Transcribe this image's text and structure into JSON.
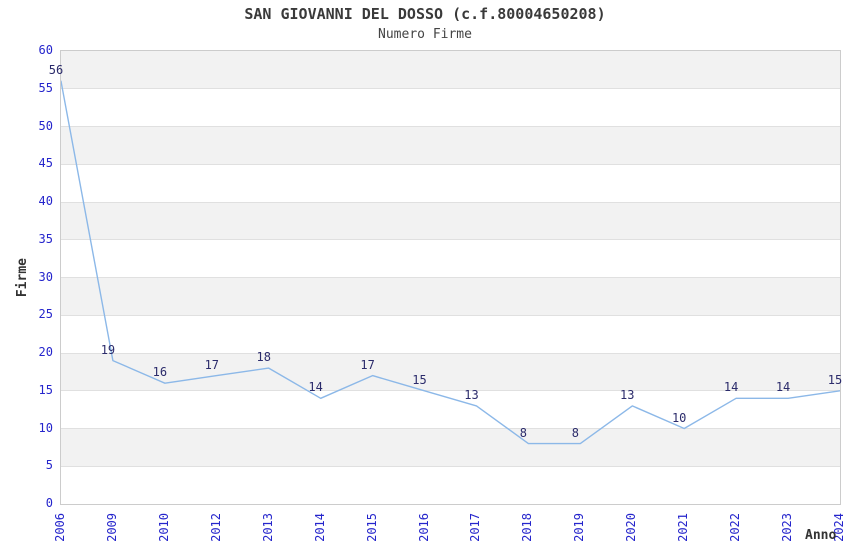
{
  "chart_data": {
    "type": "line",
    "title": "SAN GIOVANNI DEL DOSSO (c.f.80004650208)",
    "subtitle": "Numero Firme",
    "xlabel": "Anno",
    "ylabel": "Firme",
    "categories": [
      "2006",
      "2009",
      "2010",
      "2012",
      "2013",
      "2014",
      "2015",
      "2016",
      "2017",
      "2018",
      "2019",
      "2020",
      "2021",
      "2022",
      "2023",
      "2024"
    ],
    "values": [
      56,
      19,
      16,
      17,
      18,
      14,
      17,
      15,
      13,
      8,
      8,
      13,
      10,
      14,
      14,
      15
    ],
    "yticks": [
      0,
      5,
      10,
      15,
      20,
      25,
      30,
      35,
      40,
      45,
      50,
      55,
      60
    ],
    "ylim": [
      0,
      60
    ],
    "ytick_step": 5,
    "grid": true,
    "legend": "none",
    "colors": {
      "line": "#8cb8e8",
      "tick_label": "#2525cc",
      "point_label": "#2b2b6b",
      "band_gray": "#f2f2f2",
      "band_white": "#ffffff",
      "gridline": "#e0e0e0",
      "plot_border": "#cccccc",
      "title_text": "#3a3a3a"
    }
  }
}
